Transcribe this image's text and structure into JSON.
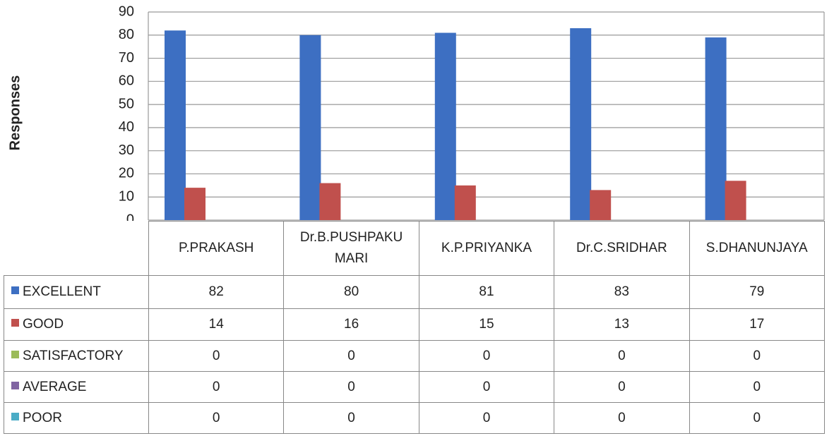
{
  "chart_data": {
    "type": "bar",
    "y_axis_label": "Responses",
    "categories": [
      "P.PRAKASH",
      "Dr.B.PUSHPAKUMARI",
      "K.P.PRIYANKA",
      "Dr.C.SRIDHAR",
      "S.DHANUNJAYA"
    ],
    "series": [
      {
        "name": "EXCELLENT",
        "color": "#3d6fc2",
        "values": [
          82,
          80,
          81,
          83,
          79
        ]
      },
      {
        "name": "GOOD",
        "color": "#c0504d",
        "values": [
          14,
          16,
          15,
          13,
          17
        ]
      },
      {
        "name": "SATISFACTORY",
        "color": "#9bbb59",
        "values": [
          0,
          0,
          0,
          0,
          0
        ]
      },
      {
        "name": "AVERAGE",
        "color": "#8064a2",
        "values": [
          0,
          0,
          0,
          0,
          0
        ]
      },
      {
        "name": "POOR",
        "color": "#4bacc6",
        "values": [
          0,
          0,
          0,
          0,
          0
        ]
      }
    ],
    "ylim": [
      0,
      90
    ],
    "yticks": [
      0,
      10,
      20,
      30,
      40,
      50,
      60,
      70,
      80,
      90
    ],
    "grid": true,
    "data_table": true
  }
}
